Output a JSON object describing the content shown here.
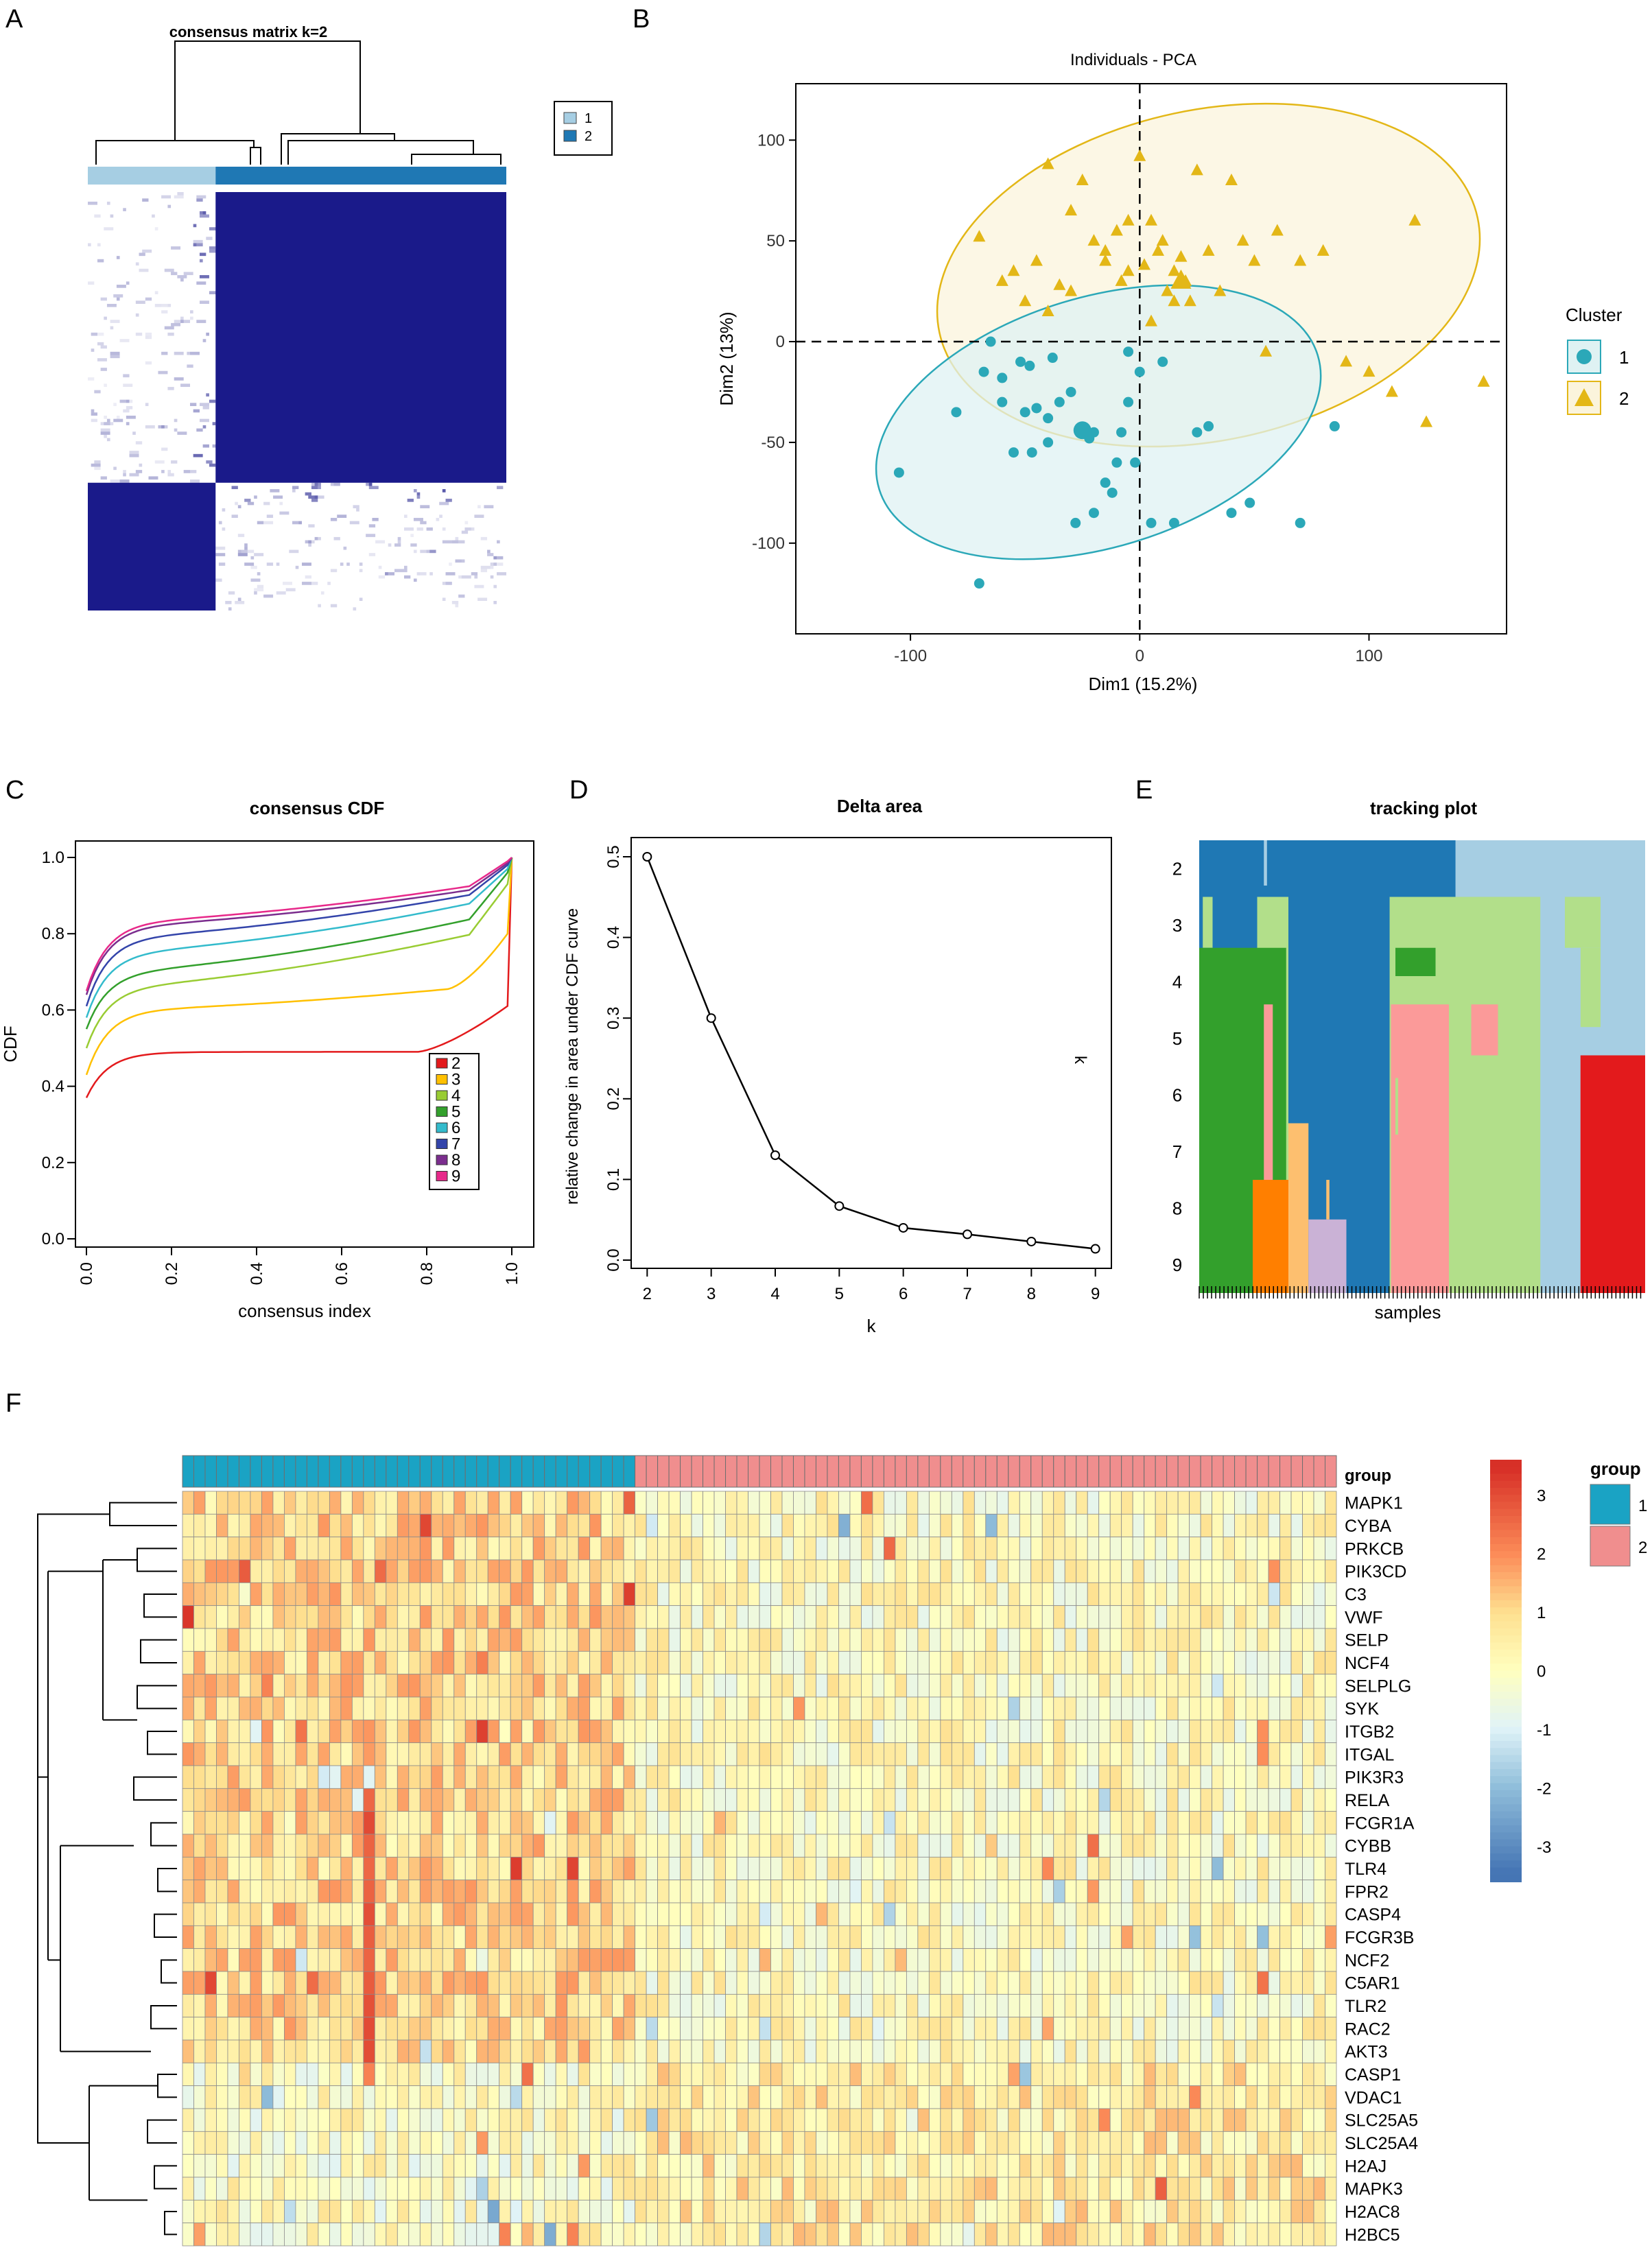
{
  "panel_labels": [
    "A",
    "B",
    "C",
    "D",
    "E",
    "F"
  ],
  "colors": {
    "consensus_dark": "#1a1a8a",
    "consensus_light": "#dcdcee",
    "cluster1_bar": "#a6cee3",
    "cluster2_bar": "#1f78b4",
    "pca_c1": "#2ba8b8",
    "pca_c2": "#e3b717",
    "pca_c1_fill": "#dff2f3",
    "pca_c2_fill": "#fbf4dc",
    "group1": "#1aa3c4",
    "group2": "#f08e8e"
  },
  "chart_data": [
    {
      "id": "A",
      "type": "heatmap",
      "title": "consensus matrix k=2",
      "legend": [
        "1",
        "2"
      ],
      "groups": [
        {
          "name": "1",
          "size": 40
        },
        {
          "name": "2",
          "size": 91
        }
      ]
    },
    {
      "id": "B",
      "type": "scatter",
      "title": "Individuals - PCA",
      "xlabel": "Dim1 (15.2%)",
      "ylabel": "Dim2 (13%)",
      "xlim": [
        -150,
        160
      ],
      "ylim": [
        -145,
        128
      ],
      "xticks": [
        -100,
        0,
        100
      ],
      "yticks": [
        -100,
        -50,
        0,
        50,
        100
      ],
      "legend_title": "Cluster",
      "series": [
        {
          "name": "1",
          "marker": "circle",
          "ellipse": {
            "cx": -18,
            "cy": -40,
            "rx": 100,
            "ry": 62,
            "angle": -17
          },
          "x": [
            -105,
            -70,
            -80,
            -60,
            -50,
            -45,
            -40,
            -47,
            -55,
            -52,
            -28,
            -20,
            -25,
            -15,
            -10,
            -8,
            -5,
            -2,
            5,
            15,
            25,
            30,
            40,
            48,
            70,
            -20,
            -12,
            -35,
            -40,
            -65,
            -48,
            -60,
            -30,
            -22,
            0,
            10,
            -5,
            85,
            -38,
            -68
          ],
          "y": [
            -65,
            -120,
            -35,
            -30,
            -35,
            -33,
            -38,
            -55,
            -55,
            -10,
            -90,
            -45,
            -45,
            -70,
            -60,
            -45,
            -30,
            -60,
            -90,
            -90,
            -45,
            -42,
            -85,
            -80,
            -90,
            -85,
            -75,
            -30,
            -50,
            0,
            -12,
            -18,
            -25,
            -48,
            -15,
            -10,
            -5,
            -42,
            -8,
            -15
          ]
        },
        {
          "name": "2",
          "marker": "triangle",
          "ellipse": {
            "cx": 30,
            "cy": 33,
            "rx": 120,
            "ry": 82,
            "angle": -12
          },
          "x": [
            -70,
            -40,
            -25,
            -15,
            -10,
            -5,
            0,
            5,
            10,
            15,
            20,
            25,
            30,
            40,
            45,
            50,
            60,
            70,
            80,
            90,
            100,
            110,
            120,
            125,
            150,
            -60,
            -50,
            -45,
            -35,
            -30,
            -20,
            -15,
            -8,
            2,
            8,
            12,
            18,
            22,
            35,
            55,
            -55,
            -30,
            5,
            15,
            -40,
            -5
          ],
          "y": [
            52,
            88,
            80,
            45,
            55,
            35,
            92,
            60,
            50,
            35,
            30,
            85,
            45,
            80,
            50,
            40,
            55,
            40,
            45,
            -10,
            -15,
            -25,
            60,
            -40,
            -20,
            30,
            20,
            40,
            28,
            25,
            50,
            40,
            30,
            38,
            45,
            25,
            42,
            20,
            25,
            -5,
            35,
            65,
            10,
            20,
            15,
            60
          ]
        }
      ]
    },
    {
      "id": "C",
      "type": "line",
      "title": "consensus CDF",
      "xlabel": "consensus index",
      "ylabel": "CDF",
      "xlim": [
        0,
        1
      ],
      "ylim": [
        0,
        1
      ],
      "xticks": [
        "0.0",
        "0.2",
        "0.4",
        "0.6",
        "0.8",
        "1.0"
      ],
      "yticks": [
        "0.0",
        "0.2",
        "0.4",
        "0.6",
        "0.8",
        "1.0"
      ],
      "series": [
        {
          "name": "2",
          "color": "#e31a1c",
          "start": 0.37,
          "plateau": 0.49,
          "late": 0.5,
          "end_before": 0.62
        },
        {
          "name": "3",
          "color": "#ffc000",
          "start": 0.43,
          "plateau": 0.6,
          "late": 0.67,
          "end_before": 0.8
        },
        {
          "name": "4",
          "color": "#99cc33",
          "start": 0.5,
          "plateau": 0.66,
          "late": 0.82,
          "end_before": 0.93
        },
        {
          "name": "5",
          "color": "#33a02c",
          "start": 0.55,
          "plateau": 0.7,
          "late": 0.86,
          "end_before": 0.96
        },
        {
          "name": "6",
          "color": "#33bbcc",
          "start": 0.58,
          "plateau": 0.75,
          "late": 0.9,
          "end_before": 0.97
        },
        {
          "name": "7",
          "color": "#3344aa",
          "start": 0.61,
          "plateau": 0.79,
          "late": 0.92,
          "end_before": 0.98
        },
        {
          "name": "8",
          "color": "#7b2d8e",
          "start": 0.64,
          "plateau": 0.82,
          "late": 0.93,
          "end_before": 0.985
        },
        {
          "name": "9",
          "color": "#e7298a",
          "start": 0.65,
          "plateau": 0.83,
          "late": 0.94,
          "end_before": 0.99
        }
      ]
    },
    {
      "id": "D",
      "type": "line",
      "title": "Delta area",
      "xlabel": "k",
      "ylabel": "relative change in area under CDF curve",
      "point_label": "k",
      "x": [
        2,
        3,
        4,
        5,
        6,
        7,
        8,
        9
      ],
      "values": [
        0.5,
        0.3,
        0.13,
        0.067,
        0.04,
        0.032,
        0.023,
        0.014
      ],
      "xlim": [
        1.75,
        9.25
      ],
      "ylim": [
        0,
        0.5
      ],
      "yticks": [
        "0.0",
        "0.1",
        "0.2",
        "0.3",
        "0.4",
        "0.5"
      ]
    },
    {
      "id": "E",
      "type": "heatmap",
      "title": "tracking plot",
      "xlabel": "samples",
      "rows": [
        "2",
        "3",
        "4",
        "5",
        "6",
        "7",
        "8",
        "9"
      ],
      "n_samples": 108
    },
    {
      "id": "F",
      "type": "heatmap",
      "group_label": "group",
      "legend_title": "group",
      "legend_groups": [
        "1",
        "2"
      ],
      "scale_ticks": [
        "3",
        "2",
        "1",
        "0",
        "-1",
        "-2",
        "-3"
      ],
      "group_sizes": [
        40,
        62
      ],
      "genes": [
        "MAPK1",
        "CYBA",
        "PRKCB",
        "PIK3CD",
        "C3",
        "VWF",
        "SELP",
        "NCF4",
        "SELPLG",
        "SYK",
        "ITGB2",
        "ITGAL",
        "PIK3R3",
        "RELA",
        "FCGR1A",
        "CYBB",
        "TLR4",
        "FPR2",
        "CASP4",
        "FCGR3B",
        "NCF2",
        "C5AR1",
        "TLR2",
        "RAC2",
        "AKT3",
        "CASP1",
        "VDAC1",
        "SLC25A5",
        "SLC25A4",
        "H2AJ",
        "MAPK3",
        "H2AC8",
        "H2BC5"
      ]
    }
  ]
}
